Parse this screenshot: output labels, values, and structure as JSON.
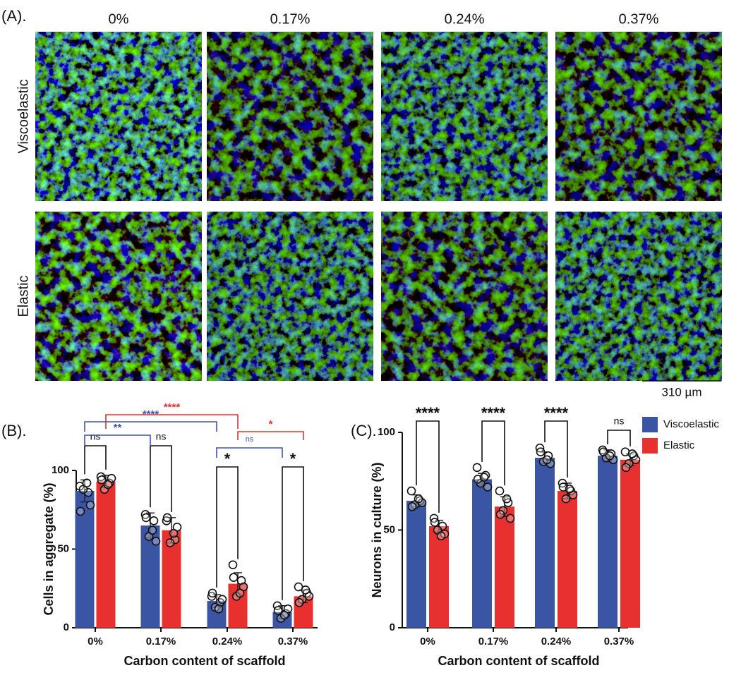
{
  "panel_a": {
    "label": "(A).",
    "columns": [
      "0%",
      "0.17%",
      "0.24%",
      "0.37%"
    ],
    "rows": [
      "Viscoelastic",
      "Elastic"
    ],
    "scale_bar": "310 µm"
  },
  "chart_data": [
    {
      "type": "bar",
      "panel_label": "(B).",
      "ylabel": "Cells in aggregate (%)",
      "xlabel": "Carbon content of scaffold",
      "categories": [
        "0%",
        "0.17%",
        "0.24%",
        "0.37%"
      ],
      "series": [
        {
          "color": "#3a55a4",
          "values": [
            87,
            65,
            17,
            10
          ],
          "errors": [
            7,
            8,
            4,
            4
          ],
          "points": [
            [
              90,
              86,
              88,
              78,
              74,
              92
            ],
            [
              72,
              68,
              58,
              55,
              70,
              62
            ],
            [
              20,
              16,
              13,
              18,
              22,
              12
            ],
            [
              14,
              9,
              6,
              12,
              11,
              8
            ]
          ]
        },
        {
          "color": "#e8312f",
          "values": [
            93,
            62,
            28,
            20
          ],
          "errors": [
            4,
            8,
            7,
            4
          ],
          "points": [
            [
              96,
              92,
              88,
              95,
              94,
              91
            ],
            [
              68,
              56,
              54,
              64,
              70,
              60
            ],
            [
              40,
              30,
              20,
              26,
              32,
              22
            ],
            [
              26,
              22,
              18,
              20,
              16,
              24
            ]
          ]
        }
      ],
      "ylim": [
        0,
        100
      ],
      "yticks": [
        0,
        50,
        100
      ],
      "annotations": [
        {
          "text": "ns",
          "color": "#111111"
        },
        {
          "text": "ns",
          "color": "#111111"
        },
        {
          "text": "*",
          "color": "#111111"
        },
        {
          "text": "*",
          "color": "#111111"
        },
        {
          "text": "**",
          "color": "#3a55a4"
        },
        {
          "text": "****",
          "color": "#3a55a4"
        },
        {
          "text": "****",
          "color": "#e8312f"
        },
        {
          "text": "ns",
          "color": "#3a55a4"
        },
        {
          "text": "*",
          "color": "#e8312f"
        }
      ]
    },
    {
      "type": "bar",
      "panel_label": "(C).",
      "ylabel": "Neurons in culture (%)",
      "xlabel": "Carbon content of scaffold",
      "categories": [
        "0%",
        "0.17%",
        "0.24%",
        "0.37%"
      ],
      "series": [
        {
          "name": "Viscoelastic",
          "color": "#3a55a4",
          "values": [
            65,
            76,
            87,
            88
          ],
          "errors": [
            3,
            3,
            3,
            3
          ],
          "points": [
            [
              70,
              65,
              63,
              64,
              62,
              66
            ],
            [
              82,
              78,
              74,
              72,
              76,
              77
            ],
            [
              92,
              88,
              85,
              84,
              90,
              86
            ],
            [
              91,
              89,
              87,
              86,
              90,
              88
            ]
          ]
        },
        {
          "name": "Elastic",
          "color": "#e8312f",
          "values": [
            52,
            62,
            70,
            86
          ],
          "errors": [
            3,
            5,
            4,
            3
          ],
          "points": [
            [
              56,
              52,
              50,
              48,
              54,
              47
            ],
            [
              70,
              64,
              60,
              56,
              58,
              66
            ],
            [
              74,
              70,
              66,
              68,
              72,
              71
            ],
            [
              90,
              88,
              84,
              86,
              82,
              89
            ]
          ]
        }
      ],
      "ylim": [
        0,
        100
      ],
      "yticks": [
        0,
        50,
        100
      ],
      "legend": "top-right",
      "annotations": [
        {
          "text": "****",
          "color": "#111111"
        },
        {
          "text": "****",
          "color": "#111111"
        },
        {
          "text": "****",
          "color": "#111111"
        },
        {
          "text": "ns",
          "color": "#111111"
        }
      ]
    }
  ]
}
